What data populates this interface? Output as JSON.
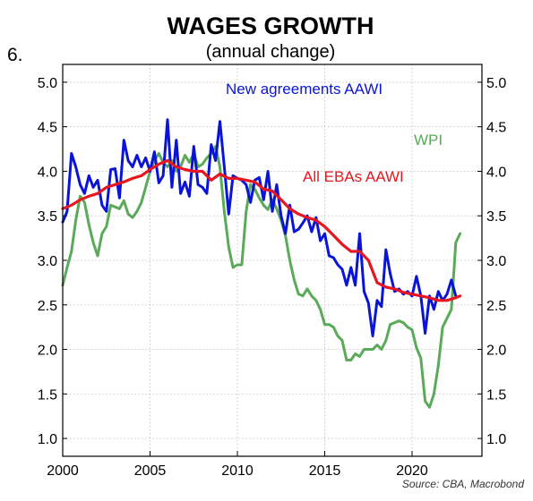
{
  "figure_number": "6.",
  "chart_data": {
    "type": "line",
    "title": "WAGES GROWTH",
    "subtitle": "(annual change)",
    "source": "Source: CBA, Macrobond",
    "xlim": [
      2000,
      2024
    ],
    "ylim": [
      0.8,
      5.2
    ],
    "x_ticks": [
      "2000",
      "2005",
      "2010",
      "2015",
      "2020"
    ],
    "y_ticks": [
      "1.0",
      "1.5",
      "2.0",
      "2.5",
      "3.0",
      "3.5",
      "4.0",
      "4.5",
      "5.0"
    ],
    "grid": true,
    "series": [
      {
        "name": "New agreements AAWI",
        "color": "#0a14d8",
        "points": [
          [
            2000.0,
            3.43
          ],
          [
            2000.25,
            3.55
          ],
          [
            2000.5,
            4.2
          ],
          [
            2000.75,
            4.05
          ],
          [
            2001.0,
            3.85
          ],
          [
            2001.25,
            3.75
          ],
          [
            2001.5,
            3.95
          ],
          [
            2001.75,
            3.82
          ],
          [
            2002.0,
            3.9
          ],
          [
            2002.25,
            3.62
          ],
          [
            2002.5,
            3.55
          ],
          [
            2002.75,
            4.02
          ],
          [
            2003.0,
            4.03
          ],
          [
            2003.25,
            3.7
          ],
          [
            2003.5,
            4.35
          ],
          [
            2003.75,
            4.12
          ],
          [
            2004.0,
            4.05
          ],
          [
            2004.25,
            4.18
          ],
          [
            2004.5,
            4.05
          ],
          [
            2004.75,
            4.15
          ],
          [
            2005.0,
            4.0
          ],
          [
            2005.25,
            4.22
          ],
          [
            2005.5,
            3.87
          ],
          [
            2005.75,
            3.95
          ],
          [
            2006.0,
            4.58
          ],
          [
            2006.25,
            3.82
          ],
          [
            2006.5,
            4.35
          ],
          [
            2006.75,
            3.75
          ],
          [
            2007.0,
            3.88
          ],
          [
            2007.25,
            3.72
          ],
          [
            2007.5,
            4.28
          ],
          [
            2007.75,
            3.85
          ],
          [
            2008.0,
            3.82
          ],
          [
            2008.25,
            3.75
          ],
          [
            2008.5,
            4.3
          ],
          [
            2008.75,
            4.12
          ],
          [
            2009.0,
            4.56
          ],
          [
            2009.25,
            4.05
          ],
          [
            2009.5,
            3.52
          ],
          [
            2009.75,
            3.95
          ],
          [
            2010.0,
            3.92
          ],
          [
            2010.25,
            3.9
          ],
          [
            2010.5,
            3.85
          ],
          [
            2010.75,
            3.65
          ],
          [
            2011.0,
            3.9
          ],
          [
            2011.25,
            3.93
          ],
          [
            2011.5,
            3.68
          ],
          [
            2011.75,
            4.0
          ],
          [
            2012.0,
            3.55
          ],
          [
            2012.25,
            3.85
          ],
          [
            2012.5,
            3.5
          ],
          [
            2012.75,
            3.3
          ],
          [
            2013.0,
            3.62
          ],
          [
            2013.25,
            3.32
          ],
          [
            2013.5,
            3.35
          ],
          [
            2013.75,
            3.42
          ],
          [
            2014.0,
            3.5
          ],
          [
            2014.25,
            3.32
          ],
          [
            2014.5,
            3.48
          ],
          [
            2014.75,
            3.22
          ],
          [
            2015.0,
            3.3
          ],
          [
            2015.25,
            3.05
          ],
          [
            2015.5,
            3.03
          ],
          [
            2015.75,
            2.95
          ],
          [
            2016.0,
            2.9
          ],
          [
            2016.25,
            2.72
          ],
          [
            2016.5,
            2.92
          ],
          [
            2016.75,
            2.72
          ],
          [
            2017.0,
            3.3
          ],
          [
            2017.25,
            2.65
          ],
          [
            2017.5,
            2.52
          ],
          [
            2017.75,
            2.15
          ],
          [
            2018.0,
            2.55
          ],
          [
            2018.25,
            2.48
          ],
          [
            2018.5,
            3.12
          ],
          [
            2018.75,
            2.85
          ],
          [
            2019.0,
            2.65
          ],
          [
            2019.25,
            2.68
          ],
          [
            2019.5,
            2.62
          ],
          [
            2019.75,
            2.65
          ],
          [
            2020.0,
            2.6
          ],
          [
            2020.25,
            2.82
          ],
          [
            2020.5,
            2.6
          ],
          [
            2020.75,
            2.18
          ],
          [
            2021.0,
            2.6
          ],
          [
            2021.25,
            2.45
          ],
          [
            2021.5,
            2.65
          ],
          [
            2021.75,
            2.55
          ],
          [
            2022.0,
            2.62
          ],
          [
            2022.25,
            2.78
          ],
          [
            2022.5,
            2.6
          ]
        ]
      },
      {
        "name": "WPI",
        "color": "#5aaa5a",
        "points": [
          [
            2000.0,
            2.72
          ],
          [
            2000.25,
            2.92
          ],
          [
            2000.5,
            3.1
          ],
          [
            2000.75,
            3.45
          ],
          [
            2001.0,
            3.72
          ],
          [
            2001.25,
            3.65
          ],
          [
            2001.5,
            3.4
          ],
          [
            2001.75,
            3.2
          ],
          [
            2002.0,
            3.05
          ],
          [
            2002.25,
            3.3
          ],
          [
            2002.5,
            3.38
          ],
          [
            2002.75,
            3.62
          ],
          [
            2003.0,
            3.6
          ],
          [
            2003.25,
            3.58
          ],
          [
            2003.5,
            3.67
          ],
          [
            2003.75,
            3.52
          ],
          [
            2004.0,
            3.48
          ],
          [
            2004.25,
            3.55
          ],
          [
            2004.5,
            3.65
          ],
          [
            2004.75,
            3.82
          ],
          [
            2005.0,
            4.0
          ],
          [
            2005.25,
            4.12
          ],
          [
            2005.5,
            4.2
          ],
          [
            2005.75,
            4.1
          ],
          [
            2006.0,
            4.05
          ],
          [
            2006.25,
            4.12
          ],
          [
            2006.5,
            4.0
          ],
          [
            2006.75,
            4.05
          ],
          [
            2007.0,
            4.18
          ],
          [
            2007.25,
            4.1
          ],
          [
            2007.5,
            4.2
          ],
          [
            2007.75,
            4.05
          ],
          [
            2008.0,
            4.08
          ],
          [
            2008.25,
            4.15
          ],
          [
            2008.5,
            4.2
          ],
          [
            2008.75,
            4.28
          ],
          [
            2009.0,
            4.05
          ],
          [
            2009.25,
            3.55
          ],
          [
            2009.5,
            3.15
          ],
          [
            2009.75,
            2.92
          ],
          [
            2010.0,
            2.95
          ],
          [
            2010.25,
            2.95
          ],
          [
            2010.5,
            3.55
          ],
          [
            2010.75,
            3.85
          ],
          [
            2011.0,
            3.8
          ],
          [
            2011.25,
            3.7
          ],
          [
            2011.5,
            3.62
          ],
          [
            2011.75,
            3.57
          ],
          [
            2012.0,
            3.68
          ],
          [
            2012.25,
            3.58
          ],
          [
            2012.5,
            3.45
          ],
          [
            2012.75,
            3.28
          ],
          [
            2013.0,
            3.0
          ],
          [
            2013.25,
            2.78
          ],
          [
            2013.5,
            2.62
          ],
          [
            2013.75,
            2.6
          ],
          [
            2014.0,
            2.68
          ],
          [
            2014.25,
            2.6
          ],
          [
            2014.5,
            2.55
          ],
          [
            2014.75,
            2.45
          ],
          [
            2015.0,
            2.28
          ],
          [
            2015.25,
            2.28
          ],
          [
            2015.5,
            2.25
          ],
          [
            2015.75,
            2.15
          ],
          [
            2016.0,
            2.1
          ],
          [
            2016.25,
            1.88
          ],
          [
            2016.5,
            1.88
          ],
          [
            2016.75,
            1.95
          ],
          [
            2017.0,
            1.92
          ],
          [
            2017.25,
            2.0
          ],
          [
            2017.5,
            2.0
          ],
          [
            2017.75,
            2.0
          ],
          [
            2018.0,
            2.05
          ],
          [
            2018.25,
            2.0
          ],
          [
            2018.5,
            2.1
          ],
          [
            2018.75,
            2.28
          ],
          [
            2019.0,
            2.3
          ],
          [
            2019.25,
            2.32
          ],
          [
            2019.5,
            2.3
          ],
          [
            2019.75,
            2.25
          ],
          [
            2020.0,
            2.22
          ],
          [
            2020.25,
            2.02
          ],
          [
            2020.5,
            1.9
          ],
          [
            2020.75,
            1.42
          ],
          [
            2021.0,
            1.35
          ],
          [
            2021.25,
            1.5
          ],
          [
            2021.5,
            1.82
          ],
          [
            2021.75,
            2.25
          ],
          [
            2022.0,
            2.35
          ],
          [
            2022.25,
            2.45
          ],
          [
            2022.5,
            3.2
          ],
          [
            2022.75,
            3.3
          ]
        ]
      },
      {
        "name": "All EBAs AAWI",
        "color": "#e8161e",
        "points": [
          [
            2000.0,
            3.58
          ],
          [
            2000.5,
            3.62
          ],
          [
            2001.0,
            3.68
          ],
          [
            2001.5,
            3.72
          ],
          [
            2002.0,
            3.75
          ],
          [
            2002.5,
            3.82
          ],
          [
            2003.0,
            3.85
          ],
          [
            2003.5,
            3.88
          ],
          [
            2004.0,
            3.92
          ],
          [
            2004.5,
            3.95
          ],
          [
            2005.0,
            4.02
          ],
          [
            2005.5,
            4.08
          ],
          [
            2006.0,
            4.12
          ],
          [
            2006.5,
            4.05
          ],
          [
            2007.0,
            4.02
          ],
          [
            2007.5,
            4.0
          ],
          [
            2008.0,
            4.0
          ],
          [
            2008.5,
            3.9
          ],
          [
            2009.0,
            3.97
          ],
          [
            2009.5,
            3.92
          ],
          [
            2010.0,
            3.92
          ],
          [
            2010.5,
            3.9
          ],
          [
            2011.0,
            3.88
          ],
          [
            2011.5,
            3.8
          ],
          [
            2012.0,
            3.78
          ],
          [
            2012.5,
            3.68
          ],
          [
            2013.0,
            3.58
          ],
          [
            2013.5,
            3.52
          ],
          [
            2014.0,
            3.48
          ],
          [
            2014.5,
            3.45
          ],
          [
            2015.0,
            3.38
          ],
          [
            2015.5,
            3.28
          ],
          [
            2016.0,
            3.18
          ],
          [
            2016.5,
            3.1
          ],
          [
            2017.0,
            3.1
          ],
          [
            2017.5,
            3.0
          ],
          [
            2018.0,
            2.75
          ],
          [
            2018.5,
            2.7
          ],
          [
            2019.0,
            2.68
          ],
          [
            2019.5,
            2.64
          ],
          [
            2020.0,
            2.62
          ],
          [
            2020.5,
            2.6
          ],
          [
            2021.0,
            2.58
          ],
          [
            2021.5,
            2.55
          ],
          [
            2022.0,
            2.55
          ],
          [
            2022.5,
            2.58
          ],
          [
            2022.75,
            2.6
          ]
        ]
      }
    ]
  }
}
